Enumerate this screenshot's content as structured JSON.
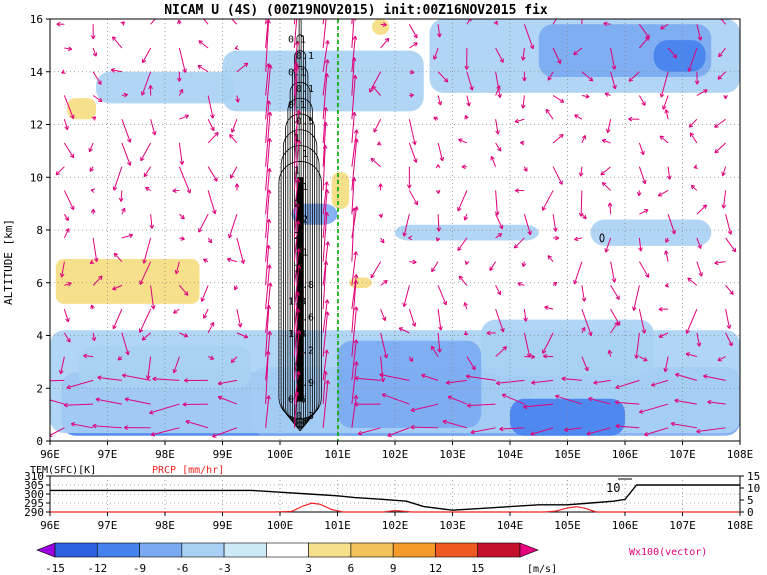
{
  "title": "NICAM U (4S) (00Z19NOV2015) init:00Z16NOV2015 fix",
  "colors": {
    "vector": "#e0007a",
    "contour": "#000000",
    "boundary": "#00aa00",
    "prcp": "#ee2222"
  },
  "chart_data": [
    {
      "type": "heatmap",
      "title": "NICAM U (4S) (00Z19NOV2015) init:00Z16NOV2015 fix",
      "xlabel": "",
      "ylabel": "ALTITUDE [km]",
      "x_ticks": [
        "96E",
        "97E",
        "98E",
        "99E",
        "100E",
        "101E",
        "102E",
        "103E",
        "104E",
        "105E",
        "106E",
        "107E",
        "108E"
      ],
      "y_ticks": [
        "0",
        "2",
        "4",
        "6",
        "8",
        "10",
        "12",
        "14",
        "16"
      ],
      "xlim": [
        96,
        108
      ],
      "ylim": [
        0,
        16
      ],
      "grid": true,
      "terrain_boundary_lon": 101,
      "contour_labels": [
        "0.1",
        "0.1",
        "0.1",
        "0.1",
        "0.1",
        "0.5",
        "1",
        "1",
        "1",
        "1",
        "2",
        "2",
        "2",
        "1",
        "1",
        "1.8",
        "1.8",
        "1.6",
        "1.4",
        "1.2",
        "1",
        "0.9",
        "0.6",
        "0.3"
      ],
      "vector_label": "Wx100(vector)",
      "colorbar": {
        "ticks": [
          "-15",
          "-12",
          "-9",
          "-6",
          "-3",
          "3",
          "6",
          "9",
          "12",
          "15"
        ],
        "unit": "[m/s]",
        "colors": [
          "#9a00e0",
          "#2e5fe0",
          "#4682ee",
          "#7aaaf2",
          "#a8d0f4",
          "#cce9f7",
          "#ffffff",
          "#f7e08c",
          "#f4c25a",
          "#f49a2a",
          "#ee5a22",
          "#c4102a",
          "#e6007e"
        ]
      }
    },
    {
      "type": "line",
      "series": [
        {
          "name": "TEM(SFC)[K]",
          "x": [
            96,
            99.5,
            100,
            100.5,
            101,
            101.3,
            101.8,
            102.2,
            102.5,
            103,
            103.5,
            104,
            104.5,
            105,
            105.4,
            105.8,
            106,
            106.2,
            107,
            108
          ],
          "values": [
            302,
            302,
            301,
            300,
            299,
            298,
            297,
            296,
            293,
            291,
            292,
            293,
            294,
            294,
            295,
            296,
            297,
            305,
            305,
            305
          ]
        },
        {
          "name": "PRCP [mm/hr]",
          "x": [
            96,
            99.9,
            100.2,
            100.4,
            100.55,
            100.7,
            100.9,
            101.1,
            101.5,
            101.8,
            102,
            102.3,
            103,
            104,
            104.6,
            104.8,
            105,
            105.15,
            105.3,
            105.5,
            106,
            108
          ],
          "values": [
            0,
            0,
            0.2,
            2.5,
            3.7,
            3.2,
            1,
            0,
            0,
            0,
            0.6,
            0,
            0,
            0,
            0,
            0.4,
            1.7,
            2.2,
            1.6,
            0,
            0,
            0
          ]
        }
      ],
      "y_ticks_left": [
        "290",
        "295",
        "300",
        "305",
        "310"
      ],
      "y_ticks_right": [
        "0",
        "5",
        "10",
        "15"
      ],
      "ylim_left": [
        290,
        310
      ],
      "ylim_right": [
        0,
        15
      ],
      "annotation": "10",
      "x_ticks": [
        "96E",
        "97E",
        "98E",
        "99E",
        "100E",
        "101E",
        "102E",
        "103E",
        "104E",
        "105E",
        "106E",
        "107E",
        "108E"
      ]
    }
  ]
}
